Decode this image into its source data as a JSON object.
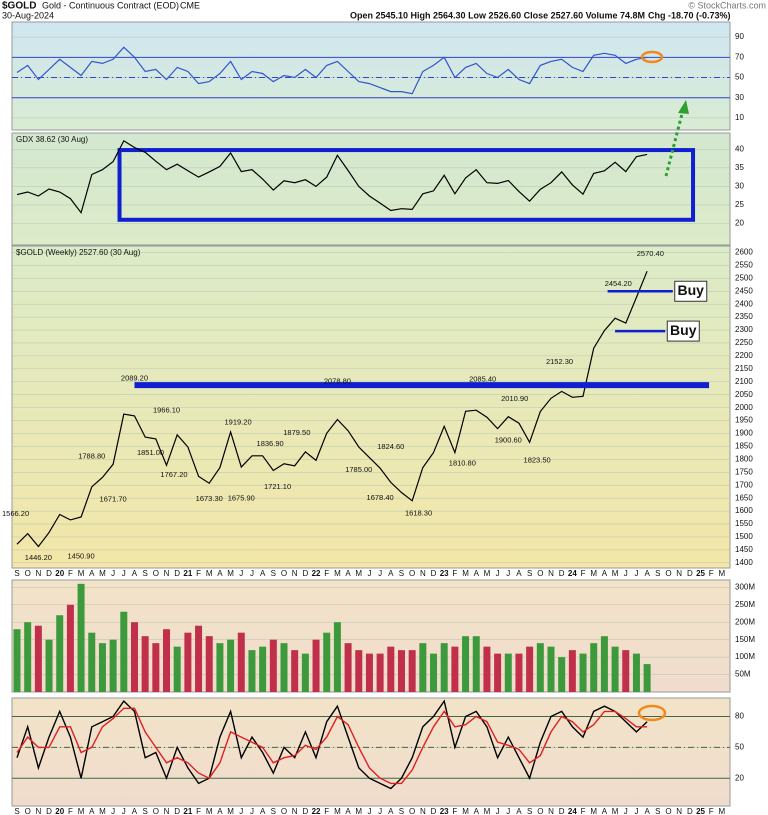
{
  "header": {
    "symbol": "$GOLD",
    "name": "Gold - Continuous Contract (EOD)",
    "exchange": "CME",
    "date": "30-Aug-2024",
    "quote": "Open 2545.10 High 2564.30 Low 2526.60 Close 2527.60 Volume 74.8M",
    "change": "Chg -18.70 (-0.73%)",
    "copyright": "© StockCharts.com"
  },
  "chart_data": [
    {
      "type": "line",
      "color": "#3355cc",
      "values": [
        55,
        62,
        48,
        58,
        68,
        60,
        52,
        66,
        64,
        68,
        80,
        70,
        56,
        58,
        48,
        60,
        56,
        44,
        46,
        54,
        66,
        48,
        56,
        54,
        46,
        52,
        50,
        58,
        50,
        62,
        66,
        56,
        46,
        44,
        40,
        36,
        36,
        34,
        56,
        62,
        70,
        50,
        60,
        64,
        54,
        50,
        58,
        48,
        44,
        62,
        66,
        68,
        60,
        56,
        72,
        74,
        72,
        64,
        68,
        70
      ],
      "ylim": [
        -2,
        105
      ],
      "yticks": [
        90,
        70,
        50,
        30,
        10
      ],
      "levels": [
        70,
        50,
        30
      ]
    },
    {
      "type": "line",
      "title": "GDX 38.62 (30 Aug)",
      "color": "#000000",
      "values": [
        27.8,
        28.5,
        27.4,
        29.3,
        28.5,
        26.7,
        22.9,
        33.2,
        34.5,
        36.7,
        42.3,
        40.5,
        39.2,
        36.8,
        34.5,
        36.0,
        34.2,
        32.5,
        33.9,
        35.4,
        39.0,
        34.0,
        34.5,
        32.0,
        29.0,
        31.5,
        31.0,
        31.8,
        30.0,
        32.5,
        38.4,
        34.3,
        30.0,
        27.4,
        25.5,
        23.5,
        24.0,
        23.8,
        28.0,
        28.8,
        33.0,
        28.0,
        32.3,
        34.5,
        31.0,
        30.8,
        31.6,
        28.6,
        26.0,
        29.2,
        31.0,
        33.9,
        30.4,
        27.9,
        33.5,
        34.2,
        36.5,
        34.0,
        38.0,
        38.62
      ],
      "ylim": [
        14.2,
        44.4
      ],
      "yticks": [
        40,
        35,
        30,
        25,
        20
      ],
      "box": {
        "from": 9.6,
        "to": 63.3,
        "ymin": 21,
        "ymax": 39.8
      }
    },
    {
      "type": "line",
      "title": "$GOLD (Weekly) 2527.60 (30 Aug)",
      "color": "#000000",
      "categories": [
        "S",
        "O",
        "N",
        "D",
        "20",
        "F",
        "M",
        "A",
        "M",
        "J",
        "J",
        "A",
        "S",
        "O",
        "N",
        "D",
        "21",
        "F",
        "M",
        "A",
        "M",
        "J",
        "J",
        "A",
        "S",
        "O",
        "N",
        "D",
        "22",
        "F",
        "M",
        "A",
        "M",
        "J",
        "J",
        "A",
        "S",
        "O",
        "N",
        "D",
        "23",
        "F",
        "M",
        "A",
        "M",
        "J",
        "J",
        "A",
        "S",
        "O",
        "N",
        "D",
        "24",
        "F",
        "M",
        "A",
        "M",
        "J",
        "J",
        "A",
        "S",
        "O",
        "N",
        "D",
        "25",
        "F",
        "M"
      ],
      "values": [
        1472,
        1513,
        1463,
        1517,
        1587,
        1566,
        1577,
        1694,
        1730,
        1781,
        1975,
        1968,
        1886,
        1879,
        1777,
        1895,
        1848,
        1734,
        1708,
        1768,
        1906,
        1770,
        1814,
        1814,
        1757,
        1783,
        1775,
        1829,
        1796,
        1901,
        1954,
        1911,
        1848,
        1807,
        1766,
        1711,
        1672,
        1640,
        1768,
        1826,
        1928,
        1826,
        1986,
        1990,
        1963,
        1919,
        1965,
        1940,
        1866,
        1985,
        2036,
        2063,
        2040,
        2044,
        2230,
        2298,
        2346,
        2327,
        2426,
        2527.6,
        null,
        null,
        null,
        null,
        null,
        null,
        null
      ],
      "ylim": [
        1380,
        2625
      ],
      "yticks": [
        2600,
        2550,
        2500,
        2450,
        2400,
        2350,
        2300,
        2250,
        2200,
        2150,
        2100,
        2050,
        2000,
        1950,
        1900,
        1850,
        1800,
        1750,
        1700,
        1650,
        1600,
        1550,
        1500,
        1450,
        1400
      ],
      "annotations": [
        {
          "value": 1566.2,
          "label": "1566.20",
          "x": 0
        },
        {
          "value": 1446.2,
          "label": "1446.20",
          "x": 2
        },
        {
          "value": 1450.9,
          "label": "1450.90",
          "x": 6
        },
        {
          "value": 1788.8,
          "label": "1788.80",
          "x": 7
        },
        {
          "value": 1671.7,
          "label": "1671.70",
          "x": 9
        },
        {
          "value": 2089.2,
          "label": "2089.20",
          "x": 11
        },
        {
          "value": 1966.1,
          "label": "1966.10",
          "x": 14
        },
        {
          "value": 1851.0,
          "label": "1851.00",
          "x": 12.5
        },
        {
          "value": 1767.2,
          "label": "1767.20",
          "x": 14.7
        },
        {
          "value": 1673.3,
          "label": "1673.30",
          "x": 18
        },
        {
          "value": 1919.2,
          "label": "1919.20",
          "x": 20.7
        },
        {
          "value": 1836.9,
          "label": "1836.90",
          "x": 23.7
        },
        {
          "value": 1675.9,
          "label": "1675.90",
          "x": 21
        },
        {
          "value": 1721.1,
          "label": "1721.10",
          "x": 24.4
        },
        {
          "value": 1879.5,
          "label": "1879.50",
          "x": 26.2
        },
        {
          "value": 2078.8,
          "label": "2078.80",
          "x": 30
        },
        {
          "value": 1785.0,
          "label": "1785.00",
          "x": 32
        },
        {
          "value": 1824.6,
          "label": "1824.60",
          "x": 35
        },
        {
          "value": 1678.4,
          "label": "1678.40",
          "x": 34
        },
        {
          "value": 1618.3,
          "label": "1618.30",
          "x": 37.6
        },
        {
          "value": 2085.4,
          "label": "2085.40",
          "x": 43.6
        },
        {
          "value": 1810.8,
          "label": "1810.80",
          "x": 41.7
        },
        {
          "value": 2010.9,
          "label": "2010.90",
          "x": 46.6
        },
        {
          "value": 1900.6,
          "label": "1900.60",
          "x": 46
        },
        {
          "value": 1823.5,
          "label": "1823.50",
          "x": 48.7
        },
        {
          "value": 2152.3,
          "label": "2152.30",
          "x": 50.8
        },
        {
          "value": 2454.2,
          "label": "2454.20",
          "x": 56.3
        },
        {
          "value": 2570.4,
          "label": "2570.40",
          "x": 59.3
        }
      ],
      "levels": [
        {
          "value": 2087,
          "from": 11,
          "to": 64.8
        },
        {
          "value": 2450,
          "from": 55.3,
          "to": 61.4,
          "label": "Buy"
        },
        {
          "value": 2296,
          "from": 56,
          "to": 60.7,
          "label": "Buy"
        }
      ]
    },
    {
      "type": "bar",
      "up_color": "#3c9a3c",
      "down_color": "#c0304a",
      "values": [
        180,
        200,
        190,
        150,
        220,
        250,
        310,
        170,
        140,
        150,
        230,
        200,
        160,
        140,
        180,
        130,
        170,
        190,
        160,
        140,
        150,
        170,
        120,
        130,
        150,
        140,
        120,
        110,
        150,
        170,
        200,
        140,
        120,
        110,
        110,
        130,
        120,
        120,
        140,
        110,
        140,
        130,
        160,
        160,
        130,
        110,
        110,
        110,
        130,
        140,
        130,
        100,
        120,
        110,
        140,
        160,
        130,
        120,
        110,
        80
      ],
      "ylim": [
        0,
        321
      ],
      "yticks": [
        {
          "value": 300,
          "label": "300M"
        },
        {
          "value": 250,
          "label": "250M"
        },
        {
          "value": 200,
          "label": "200M"
        },
        {
          "value": 150,
          "label": "150M"
        },
        {
          "value": 100,
          "label": "100M"
        },
        {
          "value": 50,
          "label": "50M"
        }
      ]
    },
    {
      "type": "line",
      "categories": [
        "S",
        "O",
        "N",
        "D",
        "20",
        "F",
        "M",
        "A",
        "M",
        "J",
        "J",
        "A",
        "S",
        "O",
        "N",
        "D",
        "21",
        "F",
        "M",
        "A",
        "M",
        "J",
        "J",
        "A",
        "S",
        "O",
        "N",
        "D",
        "22",
        "F",
        "M",
        "A",
        "M",
        "J",
        "J",
        "A",
        "S",
        "O",
        "N",
        "D",
        "23",
        "F",
        "M",
        "A",
        "M",
        "J",
        "J",
        "A",
        "S",
        "O",
        "N",
        "D",
        "24",
        "F",
        "M",
        "A",
        "M",
        "J",
        "J",
        "A",
        "S",
        "O",
        "N",
        "D",
        "25",
        "F",
        "M"
      ],
      "series": [
        {
          "color": "#000000",
          "values": [
            40,
            70,
            30,
            60,
            85,
            60,
            20,
            70,
            75,
            80,
            95,
            85,
            40,
            45,
            20,
            50,
            30,
            15,
            20,
            60,
            85,
            40,
            60,
            45,
            25,
            50,
            40,
            65,
            40,
            75,
            90,
            60,
            30,
            20,
            15,
            10,
            20,
            40,
            70,
            80,
            95,
            50,
            80,
            85,
            70,
            40,
            60,
            40,
            20,
            55,
            80,
            85,
            70,
            60,
            85,
            90,
            85,
            75,
            65,
            75,
            null,
            null,
            null,
            null,
            null,
            null,
            null
          ]
        },
        {
          "color": "#e02020",
          "values": [
            45,
            60,
            50,
            50,
            70,
            70,
            45,
            50,
            70,
            78,
            88,
            88,
            65,
            50,
            35,
            40,
            35,
            25,
            20,
            35,
            65,
            60,
            55,
            50,
            35,
            40,
            42,
            52,
            48,
            60,
            80,
            72,
            50,
            30,
            20,
            15,
            15,
            28,
            50,
            70,
            85,
            70,
            72,
            80,
            75,
            55,
            52,
            48,
            35,
            42,
            65,
            80,
            75,
            65,
            72,
            85,
            85,
            78,
            70,
            70,
            null,
            null,
            null,
            null,
            null,
            null,
            null
          ]
        }
      ],
      "ylim": [
        -7,
        98
      ],
      "yticks": [
        80,
        50,
        20
      ],
      "levels": [
        80,
        50,
        20
      ]
    }
  ]
}
